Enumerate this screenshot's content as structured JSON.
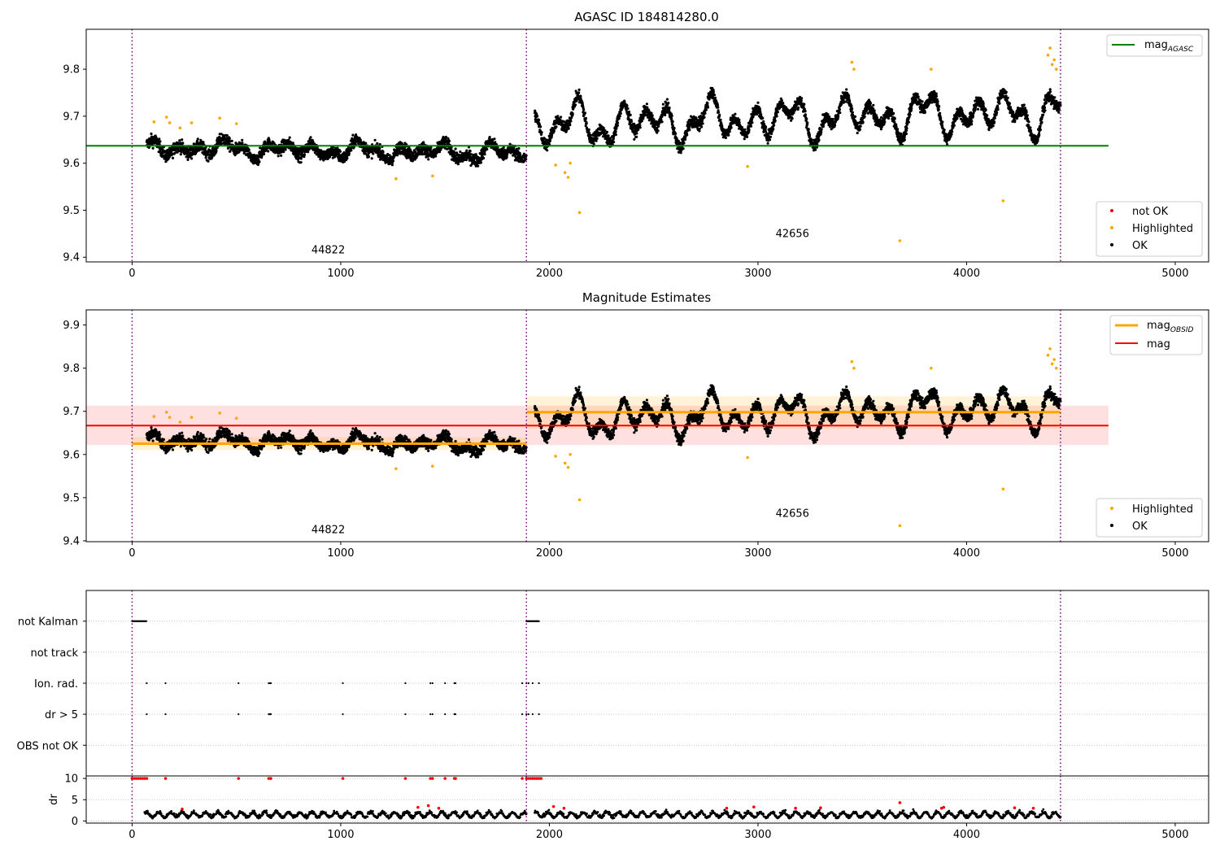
{
  "chart_data": [
    {
      "type": "scatter",
      "title": "AGASC ID 184814280.0",
      "xlim": [
        -220,
        5160
      ],
      "ylim": [
        9.39,
        9.885
      ],
      "xticks": [
        0,
        1000,
        2000,
        3000,
        4000,
        5000
      ],
      "yticks": [
        9.4,
        9.5,
        9.6,
        9.7,
        9.8
      ],
      "grid": false,
      "legend_placement": [
        "top-right",
        "bottom-right"
      ],
      "legend_upper": [
        {
          "label": "mag",
          "sub": "AGASC",
          "color": "#008000"
        }
      ],
      "legend_lower": [
        {
          "label": "not OK",
          "color": "#ff0000"
        },
        {
          "label": "Highlighted",
          "color": "#ffa500"
        },
        {
          "label": "OK",
          "color": "#000000"
        }
      ],
      "reference_line": {
        "y": 9.637,
        "x": [
          -220,
          4680
        ],
        "color": "#008000"
      },
      "vlines": [
        0,
        1890,
        4450
      ],
      "annotations": [
        {
          "text": "44822",
          "x": 940,
          "y": 9.408
        },
        {
          "text": "42656",
          "x": 3165,
          "y": 9.443
        }
      ],
      "segments": [
        {
          "x": [
            70,
            1890
          ],
          "base": 9.633,
          "slope": -0.012,
          "wobble": 0.016,
          "noise": 0.013
        },
        {
          "x": [
            1930,
            4450
          ],
          "base": 9.68,
          "slope": 0.03,
          "wobble": 0.04,
          "noise": 0.012
        }
      ],
      "highlighted": [
        [
          105,
          9.688
        ],
        [
          165,
          9.698
        ],
        [
          180,
          9.686
        ],
        [
          230,
          9.675
        ],
        [
          285,
          9.686
        ],
        [
          420,
          9.696
        ],
        [
          500,
          9.684
        ],
        [
          1265,
          9.567
        ],
        [
          1440,
          9.573
        ],
        [
          2030,
          9.596
        ],
        [
          2075,
          9.58
        ],
        [
          2090,
          9.57
        ],
        [
          2100,
          9.6
        ],
        [
          2145,
          9.495
        ],
        [
          2950,
          9.593
        ],
        [
          3450,
          9.815
        ],
        [
          3460,
          9.8
        ],
        [
          3680,
          9.435
        ],
        [
          3830,
          9.8
        ],
        [
          4175,
          9.52
        ],
        [
          4390,
          9.83
        ],
        [
          4400,
          9.845
        ],
        [
          4410,
          9.81
        ],
        [
          4420,
          9.82
        ],
        [
          4430,
          9.8
        ]
      ]
    },
    {
      "type": "scatter",
      "title": "Magnitude Estimates",
      "xlim": [
        -220,
        5160
      ],
      "ylim": [
        9.398,
        9.935
      ],
      "xticks": [
        0,
        1000,
        2000,
        3000,
        4000,
        5000
      ],
      "yticks": [
        9.4,
        9.5,
        9.6,
        9.7,
        9.8,
        9.9
      ],
      "grid": false,
      "legend_placement": [
        "top-right",
        "bottom-right"
      ],
      "legend_upper": [
        {
          "label": "mag",
          "sub": "OBSID",
          "color": "#ffa500"
        },
        {
          "label": "mag",
          "sub": "",
          "color": "#ff0000"
        }
      ],
      "legend_lower": [
        {
          "label": "Highlighted",
          "color": "#ffa500"
        },
        {
          "label": "OK",
          "color": "#000000"
        }
      ],
      "mag": {
        "y": 9.667,
        "band": [
          9.622,
          9.713
        ],
        "x": [
          -220,
          4680
        ],
        "color": "#ff0000"
      },
      "mag_obsid": [
        {
          "x": [
            0,
            1890
          ],
          "y": 9.625,
          "band": [
            9.61,
            9.64
          ]
        },
        {
          "x": [
            1890,
            4450
          ],
          "y": 9.698,
          "band": [
            9.66,
            9.735
          ]
        }
      ],
      "vlines": [
        0,
        1890,
        4450
      ],
      "annotations": [
        {
          "text": "44822",
          "x": 940,
          "y": 9.418
        },
        {
          "text": "42656",
          "x": 3165,
          "y": 9.455
        }
      ]
    },
    {
      "type": "scatter",
      "title": "",
      "xlim": [
        -220,
        5160
      ],
      "xticks": [
        0,
        1000,
        2000,
        3000,
        4000,
        5000
      ],
      "flag_rows": [
        "not Kalman",
        "not track",
        "Ion. rad.",
        "dr > 5",
        "OBS not OK"
      ],
      "flag_row_centers": [
        4,
        3,
        2,
        1,
        0
      ],
      "flag_ylim": [
        -0.99,
        4.99
      ],
      "dr_ylim": [
        -0.5,
        10.6
      ],
      "dr_yticks": [
        0,
        5,
        10
      ],
      "ylabel_dr": "dr",
      "vlines": [
        0,
        1890,
        4450
      ],
      "not_kalman": [
        [
          0,
          70
        ],
        [
          1890,
          1950
        ]
      ],
      "ion_rad": [
        70,
        160,
        510,
        655,
        660,
        665,
        1010,
        1310,
        1430,
        1440,
        1500,
        1545,
        1550,
        1870,
        1890,
        1900,
        1920,
        1950
      ],
      "dr_gt5": [
        70,
        160,
        510,
        655,
        660,
        665,
        1010,
        1310,
        1430,
        1440,
        1500,
        1545,
        1550,
        1870,
        1890,
        1900,
        1920,
        1950
      ],
      "dr_red_top": [
        0,
        10,
        20,
        30,
        40,
        50,
        60,
        70,
        160,
        510,
        655,
        665,
        1010,
        1310,
        1430,
        1440,
        1500,
        1545,
        1550,
        1870,
        1890,
        1900,
        1910,
        1920,
        1930,
        1940,
        1950,
        1960
      ],
      "dr_red_low": [
        [
          240,
          2.8
        ],
        [
          1370,
          3.2
        ],
        [
          1420,
          3.6
        ],
        [
          1470,
          3.0
        ],
        [
          2020,
          3.4
        ],
        [
          2070,
          3.0
        ],
        [
          2850,
          3.0
        ],
        [
          2980,
          3.3
        ],
        [
          3180,
          3.0
        ],
        [
          3300,
          3.1
        ],
        [
          3680,
          4.3
        ],
        [
          3880,
          3.0
        ],
        [
          3890,
          3.2
        ],
        [
          4230,
          3.1
        ],
        [
          4320,
          3.0
        ]
      ]
    }
  ]
}
